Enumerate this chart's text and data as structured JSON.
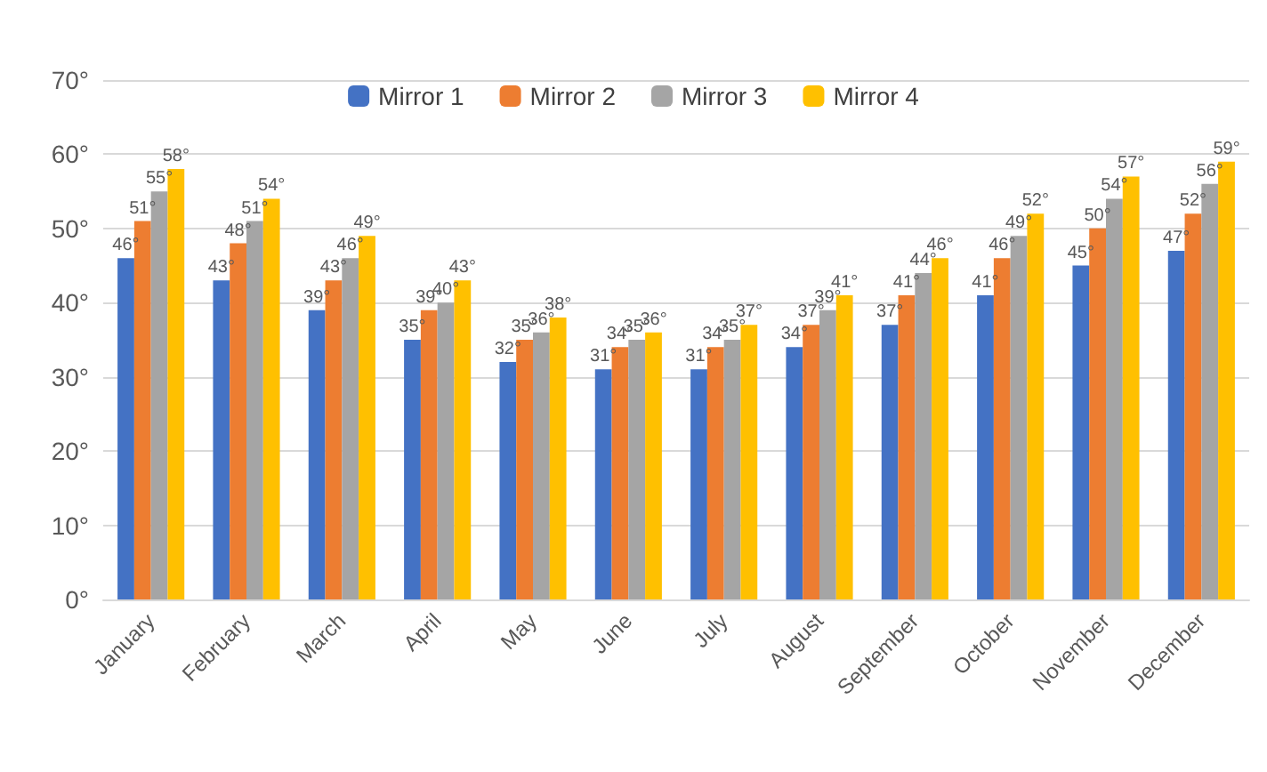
{
  "chart_data": {
    "type": "bar",
    "categories": [
      "January",
      "February",
      "March",
      "April",
      "May",
      "June",
      "July",
      "August",
      "September",
      "October",
      "November",
      "December"
    ],
    "series": [
      {
        "name": "Mirror 1",
        "color": "#4472c4",
        "values": [
          46,
          43,
          39,
          35,
          32,
          31,
          31,
          34,
          37,
          41,
          45,
          47
        ],
        "value_labels": [
          "46°",
          "43°",
          "39°",
          "35°",
          "32°",
          "31°",
          "31°",
          "34°",
          "37°",
          "41°",
          "45°",
          "47°"
        ]
      },
      {
        "name": "Mirror 2",
        "color": "#ed7d31",
        "values": [
          51,
          48,
          43,
          39,
          35,
          34,
          34,
          37,
          41,
          46,
          50,
          52
        ],
        "value_labels": [
          "51°",
          "48°",
          "43°",
          "39°",
          "35°",
          "34°",
          "34°",
          "37°",
          "41°",
          "46°",
          "50°",
          "52°"
        ]
      },
      {
        "name": "Mirror 3",
        "color": "#a5a5a5",
        "values": [
          55,
          51,
          46,
          40,
          36,
          35,
          35,
          39,
          44,
          49,
          54,
          56
        ],
        "value_labels": [
          "55°",
          "51°",
          "46°",
          "40°",
          "36°",
          "35°",
          "35°",
          "39°",
          "44°",
          "49°",
          "54°",
          "56°"
        ]
      },
      {
        "name": "Mirror 4",
        "color": "#ffc000",
        "values": [
          58,
          54,
          49,
          43,
          38,
          36,
          37,
          41,
          46,
          52,
          57,
          59
        ],
        "value_labels": [
          "58°",
          "54°",
          "49°",
          "43°",
          "38°",
          "36°",
          "37°",
          "41°",
          "46°",
          "52°",
          "57°",
          "59°"
        ]
      }
    ],
    "ylim": [
      0,
      70
    ],
    "yticks": [
      {
        "value": 0,
        "label": "0°"
      },
      {
        "value": 10,
        "label": "10°"
      },
      {
        "value": 20,
        "label": "20°"
      },
      {
        "value": 30,
        "label": "30°"
      },
      {
        "value": 40,
        "label": "40°"
      },
      {
        "value": 50,
        "label": "50°"
      },
      {
        "value": 60,
        "label": "60°"
      },
      {
        "value": 70,
        "label": "70°"
      }
    ],
    "grid": "y",
    "legend": "top"
  }
}
